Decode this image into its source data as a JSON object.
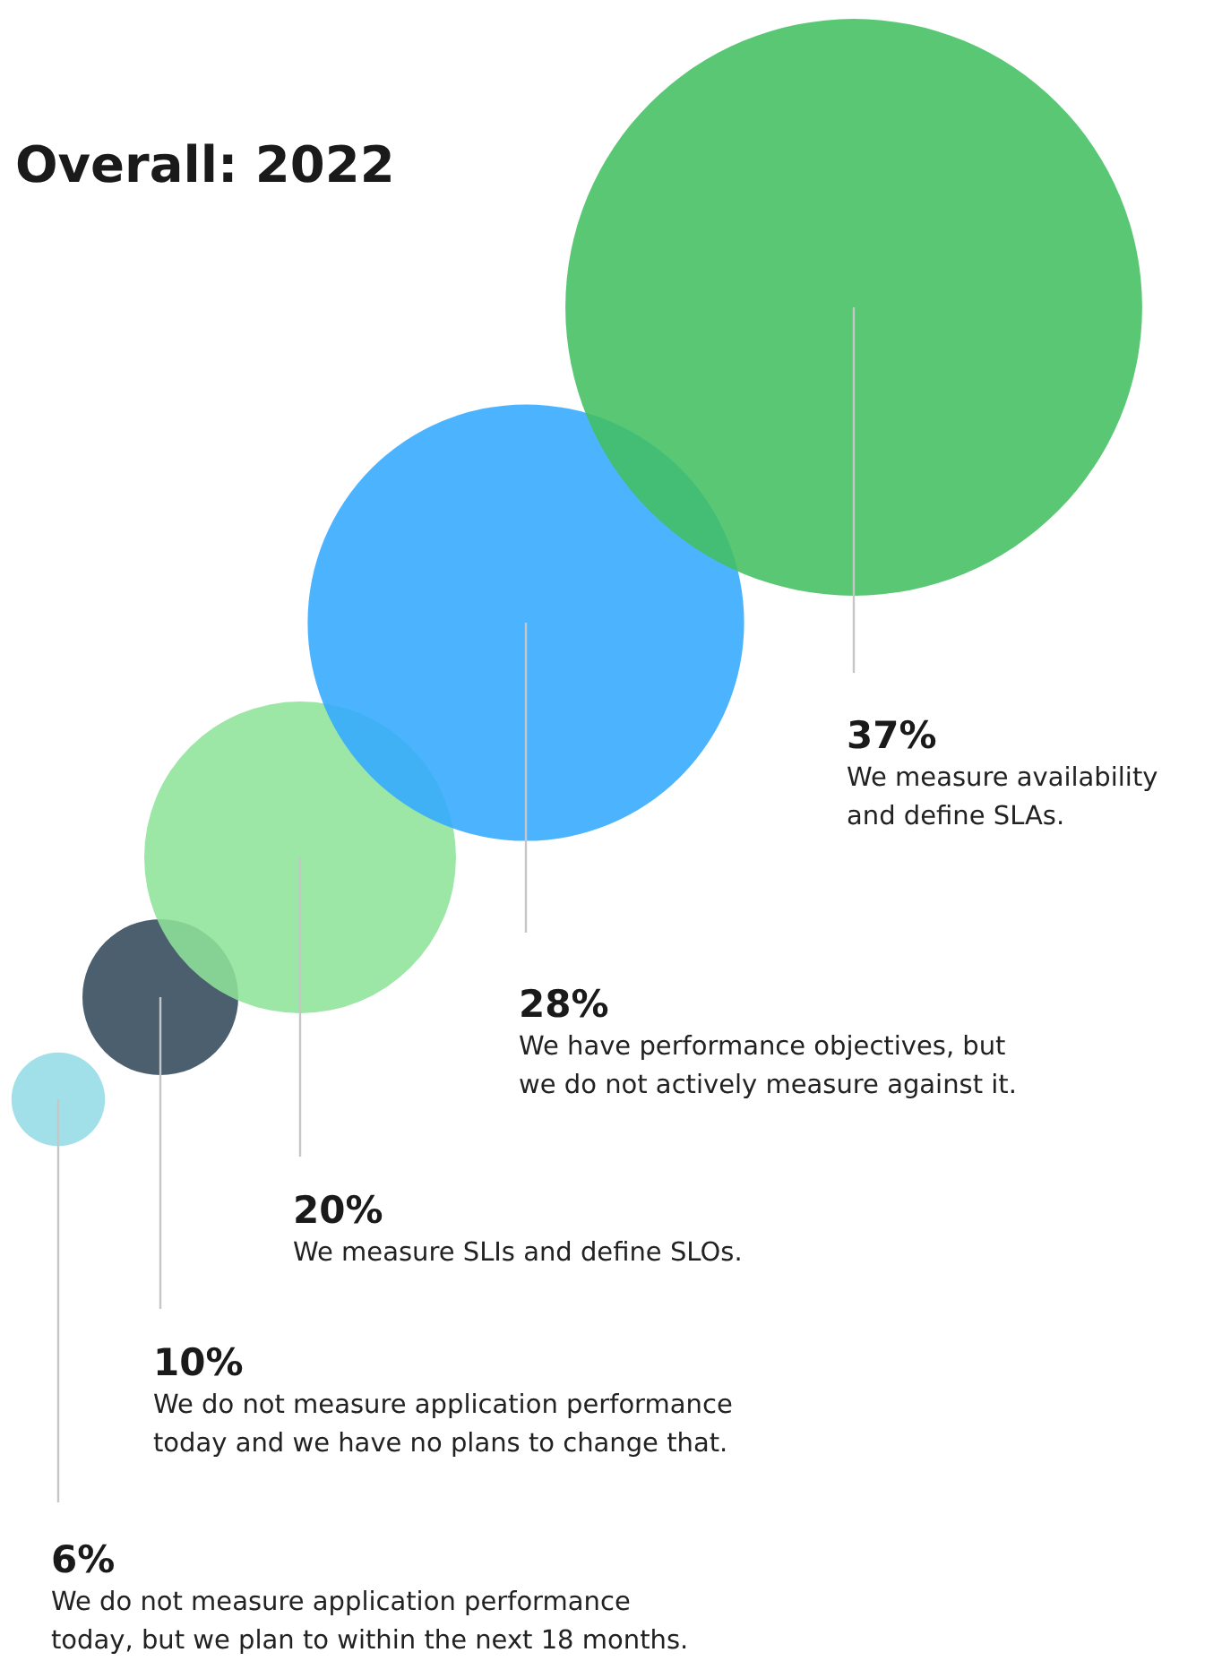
{
  "chart_data": {
    "type": "other",
    "title": "Overall: 2022",
    "categories": [
      "We do not measure application performance\ntoday, but we plan to within the next 18 months.",
      "We do not measure application performance\ntoday and we have no plans to change that.",
      "We measure SLIs and define SLOs.",
      "We have performance objectives, but\nwe do not actively measure against it.",
      "We measure availability\nand define SLAs."
    ],
    "values": [
      6,
      10,
      20,
      28,
      37
    ],
    "value_labels": [
      "6%",
      "10%",
      "20%",
      "28%",
      "37%"
    ],
    "colors": [
      "#94dce6",
      "#33495a",
      "#8ee39a",
      "#33aaff",
      "#43bf62"
    ]
  }
}
